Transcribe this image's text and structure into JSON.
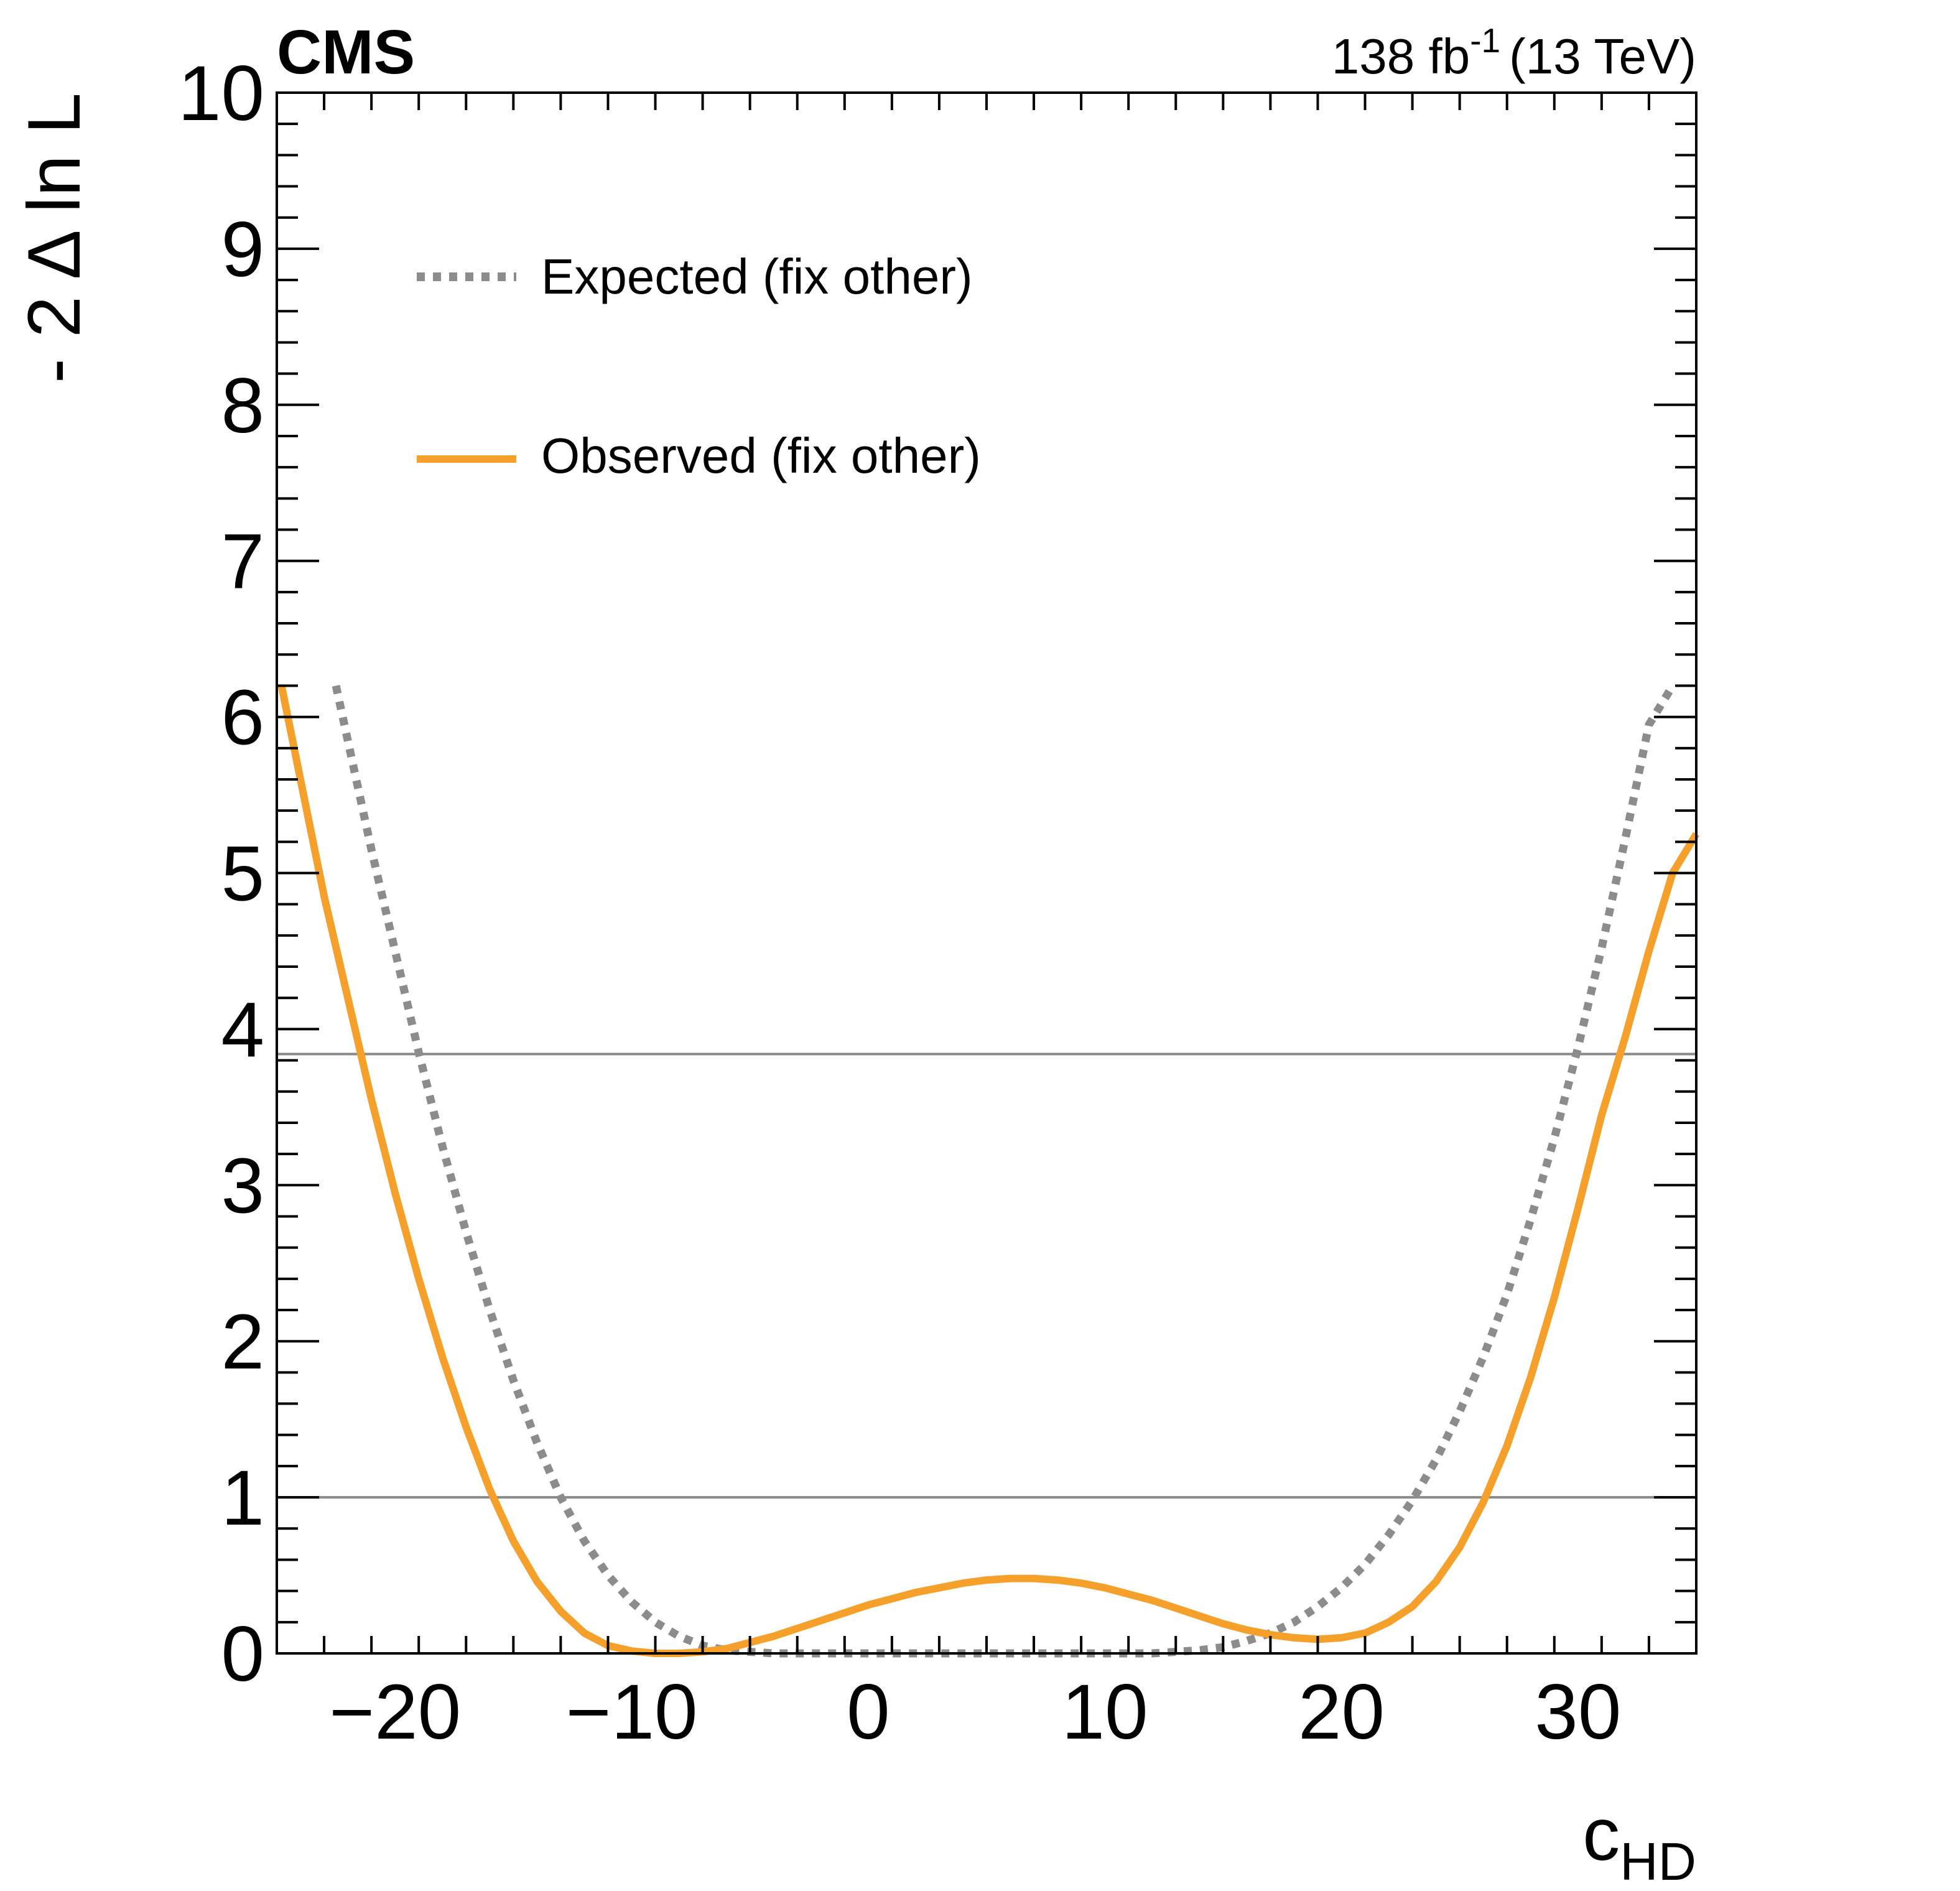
{
  "chart_data": {
    "type": "line",
    "experiment_label": "CMS",
    "luminosity_label": "138 fb",
    "luminosity_exponent": "-1",
    "energy_label": "(13 TeV)",
    "xlabel_main": "c",
    "xlabel_sub": "HD",
    "ylabel": "- 2 Δ ln L",
    "xlim": [
      -25,
      35
    ],
    "ylim": [
      0,
      10
    ],
    "x_ticks": [
      -20,
      -10,
      0,
      10,
      20,
      30
    ],
    "x_tick_labels": [
      "−20",
      "−10",
      "0",
      "10",
      "20",
      "30"
    ],
    "y_ticks": [
      0,
      1,
      2,
      3,
      4,
      5,
      6,
      7,
      8,
      9,
      10
    ],
    "y_tick_labels": [
      "0",
      "1",
      "2",
      "3",
      "4",
      "5",
      "6",
      "7",
      "8",
      "9",
      "10"
    ],
    "reference_lines": [
      1.0,
      3.84
    ],
    "legend_position": "top-left",
    "series": [
      {
        "name": "Expected (fix other)",
        "style": "dotted",
        "color": "#8c8c8c",
        "x": [
          -22.5,
          -21,
          -20,
          -19,
          -18,
          -17,
          -16,
          -15,
          -14,
          -13,
          -12,
          -11,
          -10,
          -9,
          -8,
          -7,
          -6,
          -5,
          -4,
          -2,
          0,
          4,
          8,
          12,
          14,
          15,
          16,
          17,
          18,
          19,
          20,
          21,
          22,
          23,
          24,
          25,
          26,
          27,
          28,
          29,
          30,
          31,
          32,
          33,
          34
        ],
        "y": [
          6.2,
          5.15,
          4.5,
          3.85,
          3.25,
          2.7,
          2.2,
          1.75,
          1.35,
          1.0,
          0.72,
          0.5,
          0.33,
          0.2,
          0.11,
          0.05,
          0.02,
          0.01,
          0.0,
          0.0,
          0.0,
          0.0,
          0.0,
          0.0,
          0.02,
          0.04,
          0.08,
          0.13,
          0.2,
          0.3,
          0.42,
          0.57,
          0.76,
          0.98,
          1.24,
          1.55,
          1.9,
          2.3,
          2.78,
          3.3,
          3.88,
          4.52,
          5.22,
          5.95,
          6.2
        ]
      },
      {
        "name": "Observed (fix other)",
        "style": "solid",
        "color": "#f5a02a",
        "x": [
          -24.8,
          -24,
          -23,
          -22,
          -21,
          -20,
          -19,
          -18,
          -17,
          -16,
          -15,
          -14,
          -13,
          -12,
          -11,
          -10,
          -9,
          -8,
          -7,
          -6,
          -5,
          -4,
          -3,
          -2,
          -1,
          0,
          1,
          2,
          3,
          4,
          5,
          6,
          7,
          8,
          9,
          10,
          11,
          12,
          13,
          14,
          15,
          16,
          17,
          18,
          19,
          20,
          21,
          22,
          23,
          24,
          25,
          26,
          27,
          28,
          29,
          30,
          31,
          32,
          33,
          34,
          35
        ],
        "y": [
          6.2,
          5.6,
          4.85,
          4.2,
          3.55,
          2.95,
          2.4,
          1.9,
          1.45,
          1.05,
          0.72,
          0.46,
          0.27,
          0.13,
          0.05,
          0.015,
          0.0,
          0.0,
          0.01,
          0.03,
          0.07,
          0.11,
          0.16,
          0.21,
          0.26,
          0.31,
          0.35,
          0.39,
          0.42,
          0.45,
          0.47,
          0.48,
          0.48,
          0.47,
          0.45,
          0.42,
          0.38,
          0.34,
          0.29,
          0.24,
          0.19,
          0.15,
          0.12,
          0.1,
          0.09,
          0.1,
          0.13,
          0.2,
          0.3,
          0.46,
          0.68,
          0.97,
          1.33,
          1.77,
          2.28,
          2.85,
          3.45,
          3.95,
          4.5,
          5.0,
          5.25
        ]
      }
    ]
  }
}
